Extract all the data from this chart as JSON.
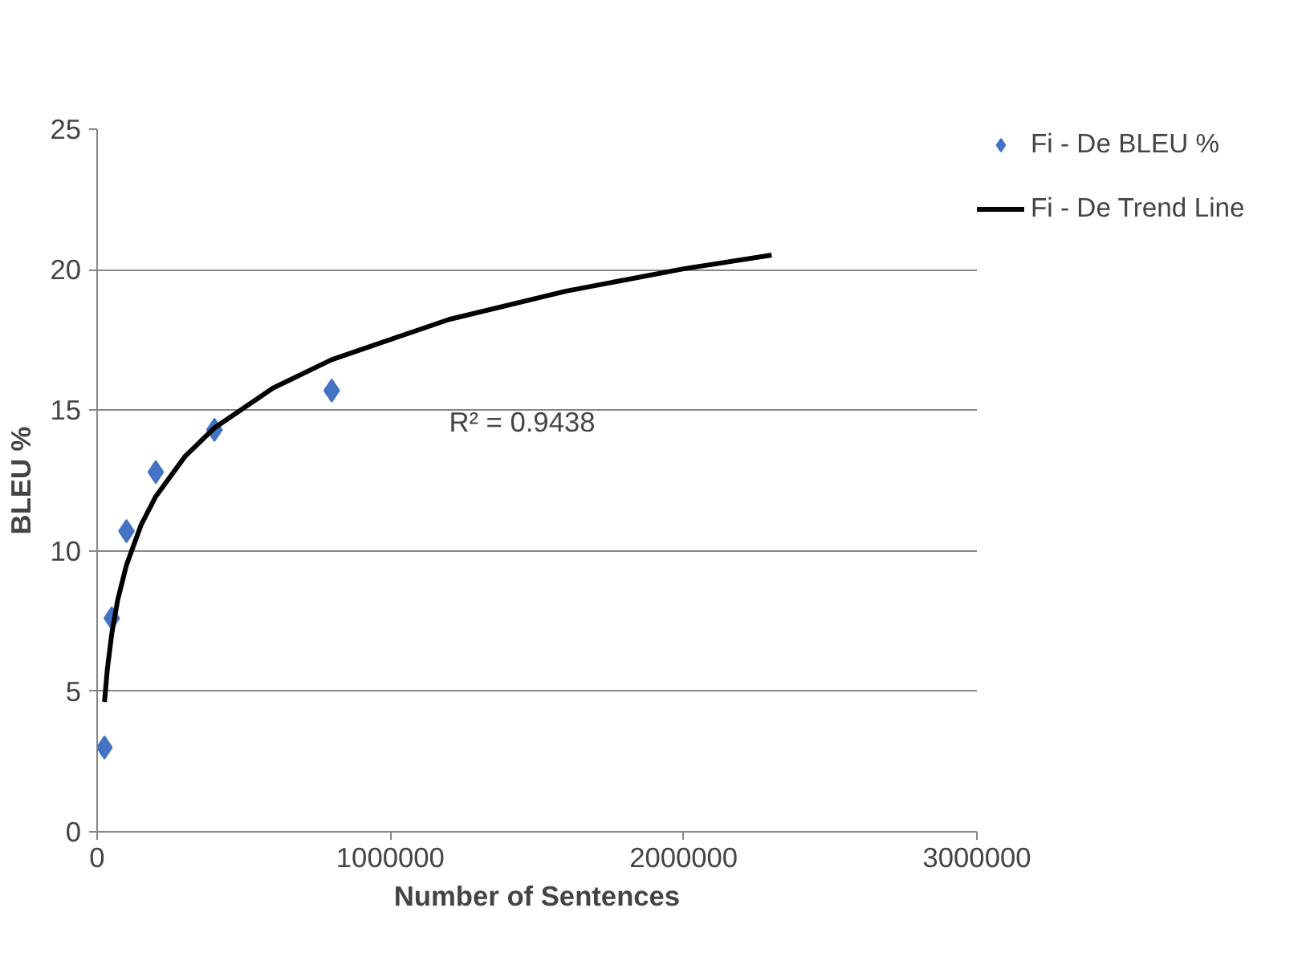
{
  "chart_data": {
    "type": "scatter",
    "xlabel": "Number of Sentences",
    "ylabel": "BLEU %",
    "x": [
      25000,
      50000,
      100000,
      200000,
      400000,
      800000
    ],
    "series": [
      {
        "name": "Fi - De BLEU %",
        "color": "#4472c4",
        "values": [
          3.0,
          7.6,
          10.7,
          12.8,
          14.3,
          15.7
        ],
        "marker": "diamond"
      },
      {
        "name": "Fi - De Trend Line",
        "type": "line",
        "color": "#000000",
        "marker": "none",
        "line_style": "solid",
        "x": [
          25000,
          35000,
          50000,
          70000,
          100000,
          150000,
          200000,
          300000,
          400000,
          600000,
          800000,
          1200000,
          1600000,
          2000000,
          2300000
        ],
        "values": [
          4.62,
          5.8,
          7.05,
          8.24,
          9.49,
          10.92,
          11.93,
          13.36,
          14.37,
          15.79,
          16.8,
          18.23,
          19.24,
          20.03,
          20.52
        ]
      }
    ],
    "xlim": [
      0,
      3000000
    ],
    "xticks": [
      0,
      1000000,
      2000000,
      3000000
    ],
    "ylim": [
      0,
      25
    ],
    "yticks": [
      0,
      5,
      10,
      15,
      20,
      25
    ],
    "grid": "y",
    "legend": "right",
    "annotations": [
      "R² = 0.9438"
    ]
  }
}
